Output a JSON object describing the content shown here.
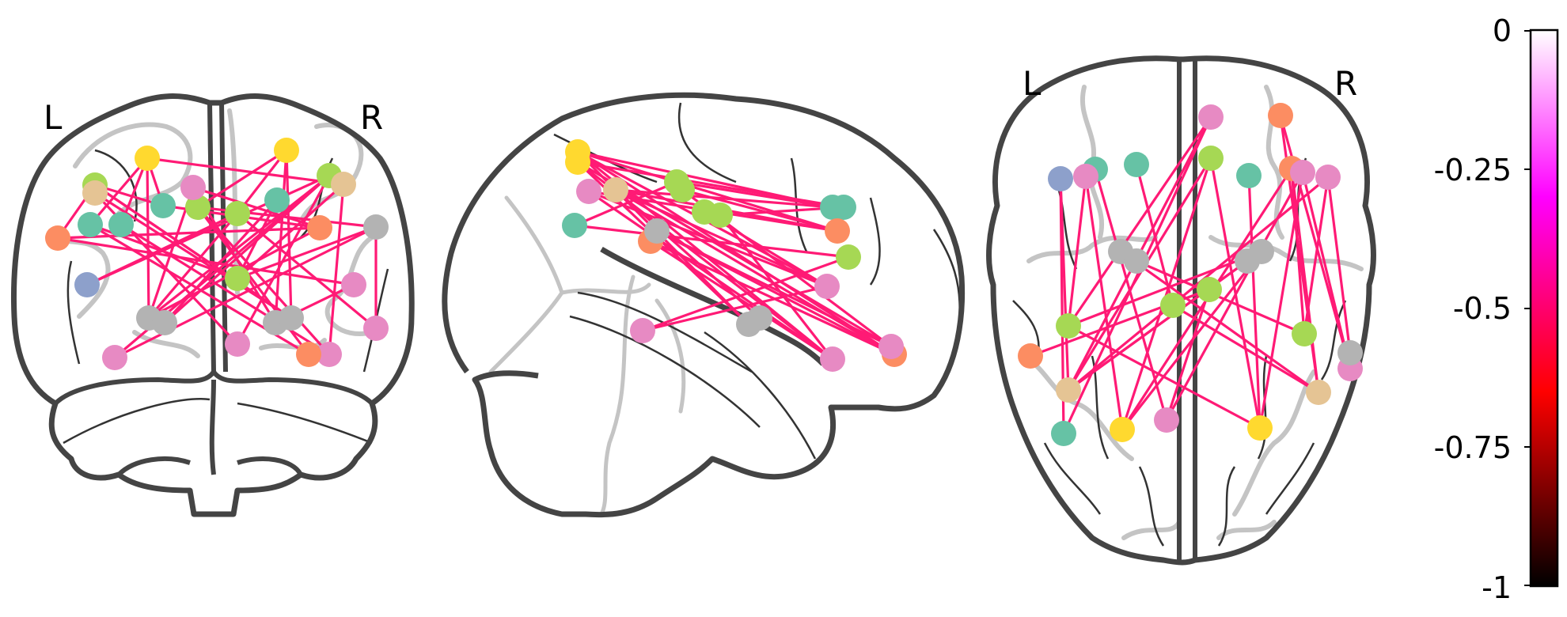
{
  "views": {
    "coronal": {
      "left_label": "L",
      "right_label": "R"
    },
    "sagittal": {},
    "axial": {
      "left_label": "L",
      "right_label": "R"
    }
  },
  "colorbar": {
    "ticks": [
      "0",
      "-0.25",
      "-0.5",
      "-0.75",
      "-1"
    ],
    "vmin": -1,
    "vmax": 0,
    "colormap": [
      "#000000",
      "#ff0000",
      "#ff00ff",
      "#ffffff"
    ]
  },
  "edge_color": "#ff1a75",
  "node_colors": {
    "yellow": "#ffd92f",
    "lime": "#a6d854",
    "teal": "#66c2a5",
    "orange": "#fc8d62",
    "pink": "#e78ac3",
    "tan": "#e5c494",
    "gray": "#b3b3b3",
    "blue": "#8da0cb"
  }
}
